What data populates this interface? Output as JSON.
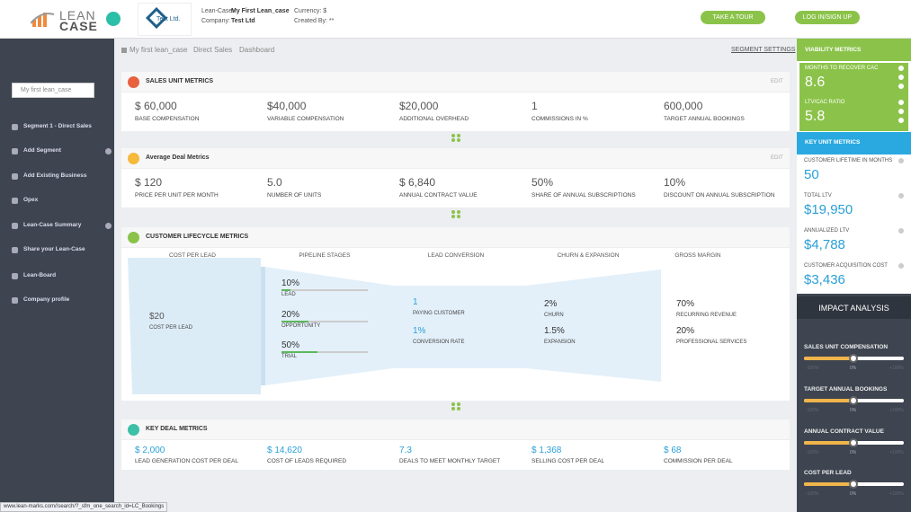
{
  "header": {
    "logo_top": "LEAN",
    "logo_bottom": "CASE",
    "company_logo": "Test Ltd.",
    "lean_case_label": "Lean-Case:",
    "lean_case_name": "My First Lean_case",
    "company_label": "Company:",
    "company_name": "Test Ltd",
    "currency": "Currency: $",
    "created_by": "Created By: **",
    "buttons": [
      "TAKE A TOUR",
      "LOG IN/SIGN UP"
    ]
  },
  "sidebar": {
    "select": "My first lean_case",
    "menu": [
      "Segment 1 - Direct Sales",
      "Add Segment",
      "Add Existing Business",
      "Opex",
      "Lean-Case Summary",
      "Share your Lean-Case",
      "Lean-Board",
      "Company profile"
    ]
  },
  "breadcrumb": {
    "items": [
      "My first lean_case",
      "Direct Sales",
      "Dashboard"
    ],
    "settings": "SEGMENT SETTINGS"
  },
  "sections": [
    {
      "title": "SALES UNIT METRICS",
      "edit": "EDIT",
      "metrics": [
        {
          "value": "$ 60,000",
          "label": "BASE COMPENSATION"
        },
        {
          "value": "$40,000",
          "label": "VARIABLE COMPENSATION"
        },
        {
          "value": "$20,000",
          "label": "ADDITIONAL OVERHEAD"
        },
        {
          "value": "1",
          "label": "COMMISSIONS IN %"
        },
        {
          "value": "600,000",
          "label": "TARGET ANNUAL BOOKINGS"
        }
      ]
    },
    {
      "title": "Average Deal Metrics",
      "edit": "EDIT",
      "metrics": [
        {
          "value": "$ 120",
          "label": "PRICE PER UNIT PER MONTH"
        },
        {
          "value": "5.0",
          "label": "NUMBER OF UNITS"
        },
        {
          "value": "$ 6,840",
          "label": "ANNUAL CONTRACT VALUE"
        },
        {
          "value": "50%",
          "label": "SHARE OF ANNUAL SUBSCRIPTIONS"
        },
        {
          "value": "10%",
          "label": "DISCOUNT ON ANNUAL SUBSCRIPTION"
        }
      ]
    },
    {
      "title": "KEY DEAL METRICS",
      "metrics": [
        {
          "value": "$ 2,000",
          "label": "LEAD GENERATION COST PER DEAL"
        },
        {
          "value": "$ 14,620",
          "label": "COST OF LEADS REQUIRED"
        },
        {
          "value": "7.3",
          "label": "DEALS TO MEET MONTHLY TARGET"
        },
        {
          "value": "$ 1,368",
          "label": "SELLING COST PER DEAL"
        },
        {
          "value": "$ 68",
          "label": "COMMISSION PER DEAL"
        }
      ]
    }
  ],
  "lifecycle": {
    "title": "CUSTOMER LIFECYCLE METRICS",
    "columns": [
      "COST PER LEAD",
      "PIPELINE STAGES",
      "LEAD CONVERSION",
      "CHURN & EXPANSION",
      "GROSS MARGIN"
    ],
    "cost": [
      {
        "value": "$20",
        "label": "COST PER LEAD"
      }
    ],
    "stages": [
      {
        "value": "10%",
        "label": "LEAD"
      },
      {
        "value": "20%",
        "label": "OPPORTUNITY"
      },
      {
        "value": "50%",
        "label": "TRIAL"
      }
    ],
    "conversion": [
      {
        "value": "1",
        "label": "PAYING CUSTOMER"
      },
      {
        "value": "1%",
        "label": "CONVERSION RATE"
      }
    ],
    "churn": [
      {
        "value": "2%",
        "label": "CHURN"
      },
      {
        "value": "1.5%",
        "label": "EXPANSION"
      }
    ],
    "margin": [
      {
        "value": "70%",
        "label": "RECURRING REVENUE"
      },
      {
        "value": "20%",
        "label": "PROFESSIONAL SERVICES"
      }
    ]
  },
  "viability": {
    "title": "VIABILITY METRICS",
    "metrics": [
      {
        "label": "MONTHS TO RECOVER CAC",
        "value": "8.6"
      },
      {
        "label": "LTV/CAC RATIO",
        "value": "5.8"
      }
    ]
  },
  "key_unit": {
    "title": "KEY UNIT METRICS",
    "metrics": [
      {
        "label": "CUSTOMER LIFETIME IN MONTHS",
        "value": "50"
      },
      {
        "label": "TOTAL LTV",
        "value": "$19,950"
      },
      {
        "label": "ANNUALIZED LTV",
        "value": "$4,788"
      },
      {
        "label": "CUSTOMER ACQUISITION COST",
        "value": "$3,436"
      }
    ]
  },
  "impact": {
    "title": "IMPACT ANALYSIS",
    "scale": [
      "-100%",
      "0%",
      "+100%"
    ],
    "sliders": [
      "SALES UNIT COMPENSATION",
      "TARGET ANNUAL BOOKINGS",
      "ANNUAL CONTRACT VALUE",
      "COST PER LEAD"
    ]
  },
  "status": "www.lean-marks.com//search/?_sfm_one_search_id=LC_Bookings"
}
